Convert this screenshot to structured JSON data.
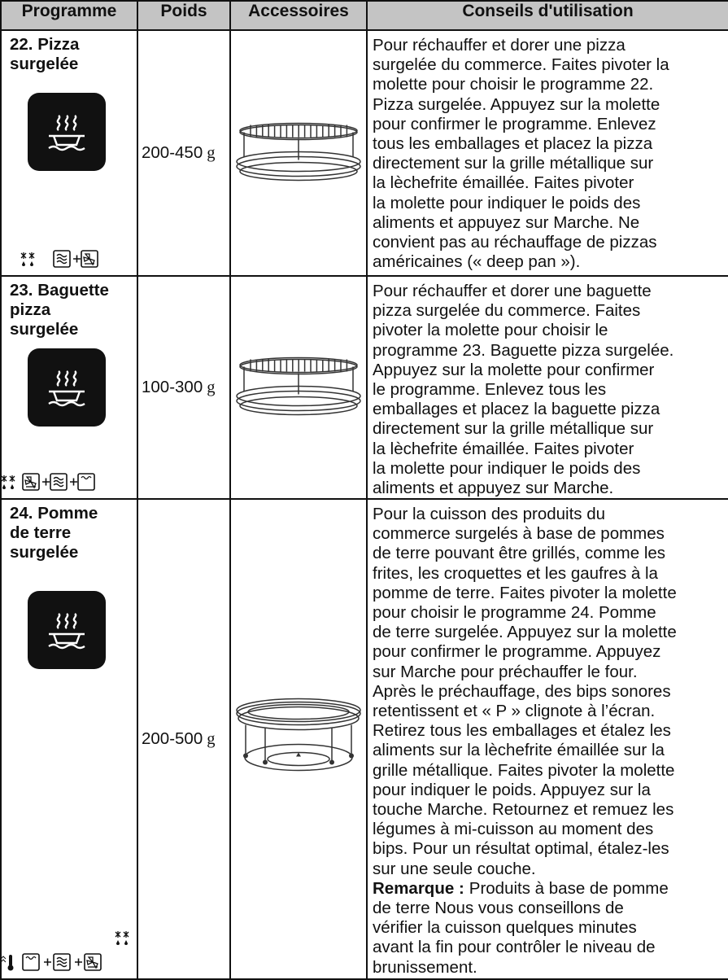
{
  "table": {
    "header": [
      "Programme",
      "Poids",
      "Accessoires",
      "Conseils d'utilisation"
    ],
    "rows": [
      {
        "programme": [
          "22. Pizza",
          "surgelée"
        ],
        "weight": "200-450",
        "unit": "g",
        "advice": [
          "Pour réchauffer et dorer une pizza",
          "surgelée du commerce. Faites pivoter la",
          "molette pour choisir le programme 22.",
          "Pizza surgelée. Appuyez sur la molette",
          "pour confirmer le programme. Enlevez",
          "tous les emballages et placez la pizza",
          "directement sur la grille métallique sur",
          "la lèchefrite émaillée. Faites pivoter",
          "la molette pour indiquer le poids des",
          "aliments et appuyez sur Marche. Ne",
          "convient pas au réchauffage de pizzas",
          "américaines (« deep pan »)."
        ]
      },
      {
        "programme": [
          "23. Baguette",
          "pizza",
          "surgelée"
        ],
        "weight": "100-300",
        "unit": "g",
        "advice": [
          "Pour réchauffer et dorer une baguette",
          "pizza surgelée du commerce. Faites",
          "pivoter la molette pour choisir le",
          "programme 23. Baguette pizza surgelée.",
          "Appuyez sur la molette pour confirmer",
          "le programme. Enlevez tous les",
          "emballages et placez la baguette pizza",
          "directement sur la grille métallique sur",
          "la lèchefrite émaillée. Faites pivoter",
          "la molette pour indiquer le poids des",
          "aliments et appuyez sur Marche."
        ]
      },
      {
        "programme": [
          "24. Pomme",
          "de terre",
          "surgelée"
        ],
        "weight": "200-500",
        "unit": "g",
        "advice": [
          "Pour la cuisson des produits du",
          "commerce surgelés à base de pommes",
          "de terre pouvant être grillés, comme les",
          "frites, les croquettes et les gaufres à la",
          "pomme de terre. Faites pivoter la molette",
          "pour choisir le programme 24. Pomme",
          "de terre surgelée. Appuyez sur la molette",
          "pour confirmer le programme. Appuyez",
          "sur Marche pour préchauffer le four.",
          "Après le préchauffage, des bips sonores",
          "retentissent et « P » clignote à l’écran.",
          "Retirez tous les emballages et étalez les",
          "aliments sur la lèchefrite émaillée sur la",
          "grille métallique. Faites pivoter la molette",
          "pour indiquer le poids. Appuyez sur la",
          "touche Marche. Retournez et remuez les",
          "légumes à mi-cuisson au moment des",
          "bips. Pour un résultat optimal, étalez-les",
          "sur une seule couche."
        ],
        "note_label": "Remarque :",
        "note": [
          "Produits à base de pomme",
          "de terre Nous vous conseillons de",
          "vérifier la cuisson quelques minutes",
          "avant la fin pour contrôler le niveau de",
          "brunissement."
        ]
      }
    ]
  }
}
